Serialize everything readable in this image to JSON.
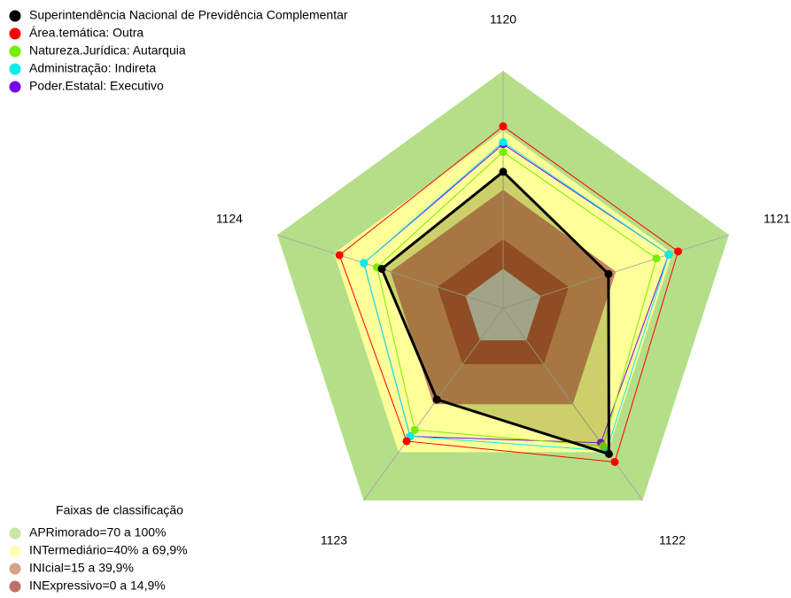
{
  "chart_data": {
    "type": "radar",
    "axes": [
      "1120",
      "1121",
      "1122",
      "1123",
      "1124"
    ],
    "rlim": [
      -20,
      100
    ],
    "center_color": "#c0c0c0",
    "bands_title": "Faixas de classificação",
    "bands": [
      {
        "name": "APRimorado=70 a 100%",
        "color": "#b5de88",
        "range": [
          70,
          100
        ]
      },
      {
        "name": "INTermediário=40% a 69,9%",
        "color": "#ffff99",
        "range": [
          40,
          69.9
        ]
      },
      {
        "name": "INIcial=15 a 39,9%",
        "color": "#c98060",
        "range": [
          15,
          39.9
        ]
      },
      {
        "name": "INExpressivo=0 a 14,9%",
        "color": "#a84232",
        "range": [
          0,
          14.9
        ]
      }
    ],
    "series": [
      {
        "name": "Superintendência Nacional de Previdência Complementar",
        "color": "#000000",
        "values": [
          49,
          36,
          71,
          37,
          44.5
        ]
      },
      {
        "name": "Área.temática: Outra",
        "color": "#ff0000",
        "values": [
          72,
          73,
          76,
          63,
          67
        ]
      },
      {
        "name": "Natureza.Jurídica: Autarquia",
        "color": "#77ee00",
        "values": [
          59,
          61.5,
          66,
          56,
          47
        ]
      },
      {
        "name": "Administração: Indireta",
        "color": "#00eeee",
        "values": [
          64,
          68,
          69,
          60,
          54
        ]
      },
      {
        "name": "Poder.Estatal: Executivo",
        "color": "#7700ee",
        "values": [
          63,
          68,
          64,
          60,
          54
        ]
      }
    ]
  }
}
